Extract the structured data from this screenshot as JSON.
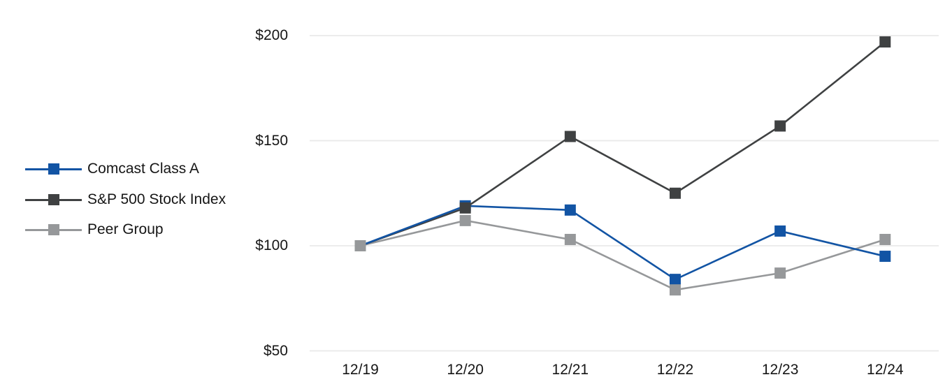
{
  "chart_data": {
    "type": "line",
    "title": "",
    "xlabel": "",
    "ylabel": "",
    "x_labels": [
      "12/19",
      "12/20",
      "12/21",
      "12/22",
      "12/23",
      "12/24"
    ],
    "ylim": [
      50,
      200
    ],
    "y_ticks": [
      {
        "label": "$200",
        "value": 200
      },
      {
        "label": "$150",
        "value": 150
      },
      {
        "label": "$100",
        "value": 100
      },
      {
        "label": "$50",
        "value": 50
      }
    ],
    "grid": "horizontal-only",
    "legend_position": "left-middle",
    "marker": "square",
    "series": [
      {
        "name": "Comcast Class A",
        "color": "#1254A4",
        "values": [
          100,
          119,
          117,
          84,
          107,
          95
        ]
      },
      {
        "name": "S&P 500 Stock Index",
        "color": "#3F4142",
        "values": [
          100,
          118,
          152,
          125,
          157,
          197
        ]
      },
      {
        "name": "Peer Group",
        "color": "#96989A",
        "values": [
          100,
          112,
          103,
          79,
          87,
          103
        ]
      }
    ],
    "colors": {
      "gridline": "#E9E9E9",
      "text": "#161616",
      "background": "#FFFFFF"
    }
  }
}
